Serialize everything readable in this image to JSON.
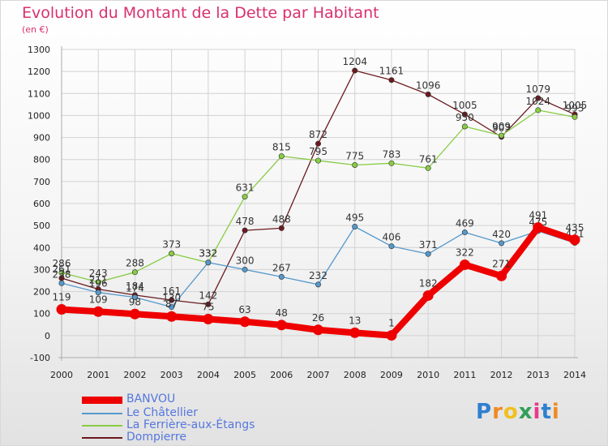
{
  "title": "Evolution du Montant de la Dette par Habitant",
  "unit_label": "(en €)",
  "logo_text": "Proxiti",
  "chart_data": {
    "type": "line",
    "x": [
      "2000",
      "2001",
      "2002",
      "2003",
      "2004",
      "2005",
      "2006",
      "2007",
      "2008",
      "2009",
      "2010",
      "2011",
      "2012",
      "2013",
      "2014"
    ],
    "ylim": [
      -100,
      1300
    ],
    "yticks": [
      "-100",
      "0",
      "100",
      "200",
      "300",
      "400",
      "500",
      "600",
      "700",
      "800",
      "900",
      "1000",
      "1100",
      "1200",
      "1300"
    ],
    "grid": true,
    "legend_position": "bottom-left",
    "series": [
      {
        "name": "Dompierre",
        "color": "#6b1a1f",
        "values": [
          261,
          211,
          184,
          161,
          142,
          478,
          488,
          872,
          1204,
          1161,
          1096,
          1005,
          903,
          1079,
          1005
        ],
        "labels": [
          "261",
          "211",
          "184",
          "161",
          "142",
          "478",
          "488",
          "872",
          "1204",
          "1161",
          "1096",
          "1005",
          "903",
          "1079",
          "1005"
        ]
      },
      {
        "name": "La Ferrière-aux-Étangs",
        "color": "#88cc44",
        "values": [
          286,
          243,
          288,
          373,
          332,
          631,
          815,
          795,
          775,
          783,
          761,
          950,
          909,
          1024,
          993
        ],
        "labels": [
          "286",
          "243",
          "288",
          "373",
          "332",
          "631",
          "815",
          "795",
          "775",
          "783",
          "761",
          "950",
          "909",
          "1024",
          "993"
        ]
      },
      {
        "name": "Le Châtellier",
        "color": "#5599cc",
        "values": [
          238,
          196,
          174,
          130,
          332,
          300,
          267,
          232,
          495,
          406,
          371,
          469,
          420,
          475,
          421
        ],
        "labels": [
          "238",
          "196",
          "174",
          "130",
          "332",
          "300",
          "267",
          "232",
          "495",
          "406",
          "371",
          "469",
          "420",
          "475",
          "421"
        ]
      },
      {
        "name": "BANVOU",
        "color": "#ee0000",
        "values": [
          119,
          109,
          98,
          87,
          75,
          63,
          48,
          26,
          13,
          1,
          182,
          322,
          271,
          491,
          435
        ],
        "labels": [
          "119",
          "109",
          "98",
          "87",
          "75",
          "63",
          "48",
          "26",
          "13",
          "1",
          "182",
          "322",
          "271",
          "491",
          "435"
        ]
      }
    ]
  },
  "legend": [
    {
      "name": "BANVOU",
      "color": "#ee0000"
    },
    {
      "name": "Le Châtellier",
      "color": "#5599cc"
    },
    {
      "name": "La Ferrière-aux-Étangs",
      "color": "#88cc44"
    },
    {
      "name": "Dompierre",
      "color": "#6b1a1f"
    }
  ]
}
